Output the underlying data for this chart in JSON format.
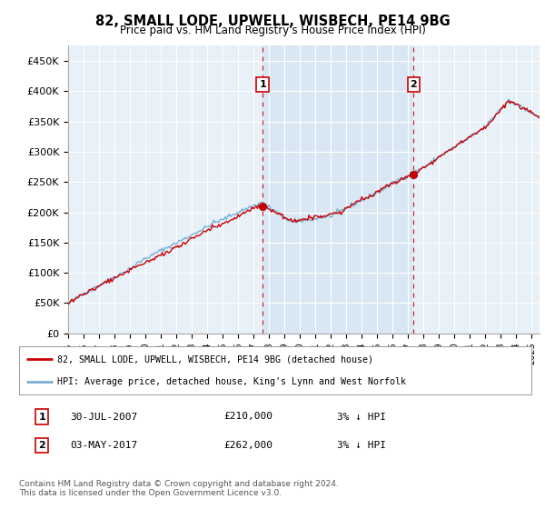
{
  "title": "82, SMALL LODE, UPWELL, WISBECH, PE14 9BG",
  "subtitle": "Price paid vs. HM Land Registry's House Price Index (HPI)",
  "ylabel_ticks": [
    "£0",
    "£50K",
    "£100K",
    "£150K",
    "£200K",
    "£250K",
    "£300K",
    "£350K",
    "£400K",
    "£450K"
  ],
  "ylim": [
    0,
    475000
  ],
  "xlim_start": 1995.0,
  "xlim_end": 2025.5,
  "sale1_year": 2007.58,
  "sale1_price": 210000,
  "sale2_year": 2017.35,
  "sale2_price": 262000,
  "legend_line1": "82, SMALL LODE, UPWELL, WISBECH, PE14 9BG (detached house)",
  "legend_line2": "HPI: Average price, detached house, King's Lynn and West Norfolk",
  "footer": "Contains HM Land Registry data © Crown copyright and database right 2024.\nThis data is licensed under the Open Government Licence v3.0.",
  "line_color_red": "#cc0000",
  "line_color_blue": "#7ab0d4",
  "shade_color": "#ddeeff",
  "bg_color": "#e8f0f8",
  "grid_color": "#ffffff",
  "title_color": "#000000"
}
